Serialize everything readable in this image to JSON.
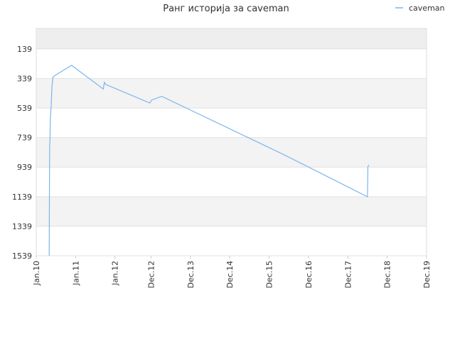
{
  "chart_data": {
    "type": "line",
    "title": "Ранг историја за caveman",
    "xlabel": "",
    "ylabel": "",
    "y_reversed": true,
    "ylim": [
      1539,
      0
    ],
    "xlim": [
      "2010-01-01",
      "2019-12-01"
    ],
    "y_ticks": [
      139,
      339,
      539,
      739,
      939,
      1139,
      1339,
      1539
    ],
    "x_ticks": [
      {
        "label": "Jan.10",
        "date": "2010-01-01"
      },
      {
        "label": "Jan.11",
        "date": "2011-01-01"
      },
      {
        "label": "Jan.12",
        "date": "2012-01-01"
      },
      {
        "label": "Dec.12",
        "date": "2012-12-01"
      },
      {
        "label": "Dec.13",
        "date": "2013-12-01"
      },
      {
        "label": "Dec.14",
        "date": "2014-12-01"
      },
      {
        "label": "Dec.15",
        "date": "2015-12-01"
      },
      {
        "label": "Dec.16",
        "date": "2016-12-01"
      },
      {
        "label": "Dec.17",
        "date": "2017-12-01"
      },
      {
        "label": "Dec.18",
        "date": "2018-12-01"
      },
      {
        "label": "Dec.19",
        "date": "2019-12-01"
      }
    ],
    "grid": true,
    "legend_position": "top-right",
    "series": [
      {
        "name": "caveman",
        "color": "#7cb5ec",
        "points": [
          {
            "x": "2010-05-01",
            "y": 1539
          },
          {
            "x": "2010-05-05",
            "y": 800
          },
          {
            "x": "2010-05-08",
            "y": 760
          },
          {
            "x": "2010-05-12",
            "y": 600
          },
          {
            "x": "2010-05-16",
            "y": 560
          },
          {
            "x": "2010-05-20",
            "y": 520
          },
          {
            "x": "2010-05-24",
            "y": 430
          },
          {
            "x": "2010-05-28",
            "y": 380
          },
          {
            "x": "2010-06-05",
            "y": 330
          },
          {
            "x": "2010-06-20",
            "y": 320
          },
          {
            "x": "2010-11-25",
            "y": 250
          },
          {
            "x": "2011-09-15",
            "y": 410
          },
          {
            "x": "2011-09-25",
            "y": 365
          },
          {
            "x": "2011-10-10",
            "y": 380
          },
          {
            "x": "2012-11-20",
            "y": 505
          },
          {
            "x": "2012-12-05",
            "y": 485
          },
          {
            "x": "2013-03-10",
            "y": 460
          },
          {
            "x": "2016-05-01",
            "y": 860
          },
          {
            "x": "2018-06-01",
            "y": 1140
          },
          {
            "x": "2018-06-05",
            "y": 935
          },
          {
            "x": "2018-06-15",
            "y": 925
          }
        ]
      }
    ]
  }
}
